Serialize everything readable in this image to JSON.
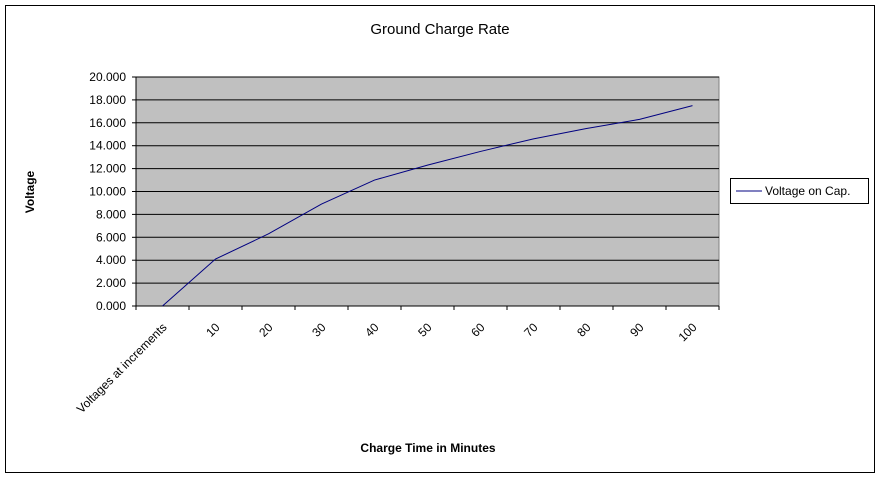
{
  "chart_data": {
    "type": "line",
    "title": "Ground Charge Rate",
    "x_label": "Charge Time in Minutes",
    "y_label": "Voltage",
    "categories": [
      "Voltages at increments",
      "10",
      "20",
      "30",
      "40",
      "50",
      "60",
      "70",
      "80",
      "90",
      "100"
    ],
    "series": [
      {
        "name": "Voltage on Cap.",
        "color": "#000080",
        "values": [
          0,
          4.1,
          6.3,
          8.9,
          11.0,
          12.3,
          13.5,
          14.6,
          15.5,
          16.3,
          17.5
        ]
      }
    ],
    "ylim": [
      0,
      20
    ],
    "yticks": [
      {
        "value": 0,
        "label": "0.000"
      },
      {
        "value": 2,
        "label": "2.000"
      },
      {
        "value": 4,
        "label": "4.000"
      },
      {
        "value": 6,
        "label": "6.000"
      },
      {
        "value": 8,
        "label": "8.000"
      },
      {
        "value": 10,
        "label": "10.000"
      },
      {
        "value": 12,
        "label": "12.000"
      },
      {
        "value": 14,
        "label": "14.000"
      },
      {
        "value": 16,
        "label": "16.000"
      },
      {
        "value": 18,
        "label": "18.000"
      },
      {
        "value": 20,
        "label": "20.000"
      }
    ],
    "grid": true,
    "legend": "right"
  }
}
